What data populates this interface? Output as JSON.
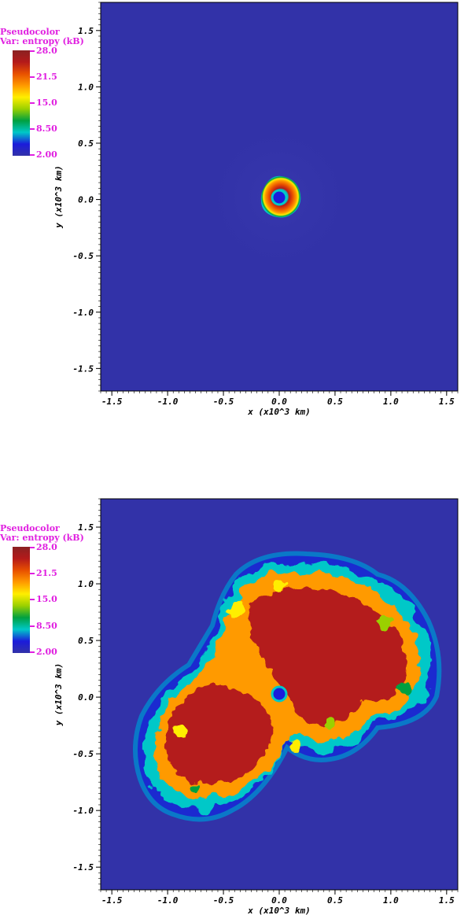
{
  "legend_color": "#e020e0",
  "colormap": [
    "#3232a8",
    "#1b1bdb",
    "#00c8c8",
    "#00a040",
    "#9ad000",
    "#ffee00",
    "#ff9a00",
    "#e85000",
    "#b41a1a",
    "#8a2222"
  ],
  "chart_data": [
    {
      "type": "heatmap",
      "plot_type": "Pseudocolor",
      "variable": "Var: entropy (kB)",
      "colorbar_ticks": [
        "28.0",
        "21.5",
        "15.0",
        "8.50",
        "2.00"
      ],
      "colorbar_range": [
        2.0,
        28.0
      ],
      "xlabel": "x (x10^3 km)",
      "ylabel": "y (x10^3 km)",
      "xticks": [
        "-1.5",
        "-1.0",
        "-0.5",
        "0.0",
        "0.5",
        "1.0",
        "1.5"
      ],
      "yticks": [
        "1.5",
        "1.0",
        "0.5",
        "0.0",
        "-0.5",
        "-1.0",
        "-1.5"
      ],
      "xlim": [
        -1.6,
        1.6
      ],
      "ylim": [
        -1.7,
        1.75
      ],
      "background_entropy": 4.0,
      "central_blob_radius": 0.17
    },
    {
      "type": "heatmap",
      "plot_type": "Pseudocolor",
      "variable": "Var: entropy (kB)",
      "colorbar_ticks": [
        "28.0",
        "21.5",
        "15.0",
        "8.50",
        "2.00"
      ],
      "colorbar_range": [
        2.0,
        28.0
      ],
      "xlabel": "x (x10^3 km)",
      "ylabel": "y (x10^3 km)",
      "xticks": [
        "-1.5",
        "-1.0",
        "-0.5",
        "0.0",
        "0.5",
        "1.0",
        "1.5"
      ],
      "yticks": [
        "1.5",
        "1.0",
        "0.5",
        "0.0",
        "-0.5",
        "-1.0",
        "-1.5"
      ],
      "xlim": [
        -1.6,
        1.6
      ],
      "ylim": [
        -1.7,
        1.75
      ],
      "background_entropy": 4.0,
      "shock_extent": [
        -1.25,
        1.35
      ]
    }
  ]
}
